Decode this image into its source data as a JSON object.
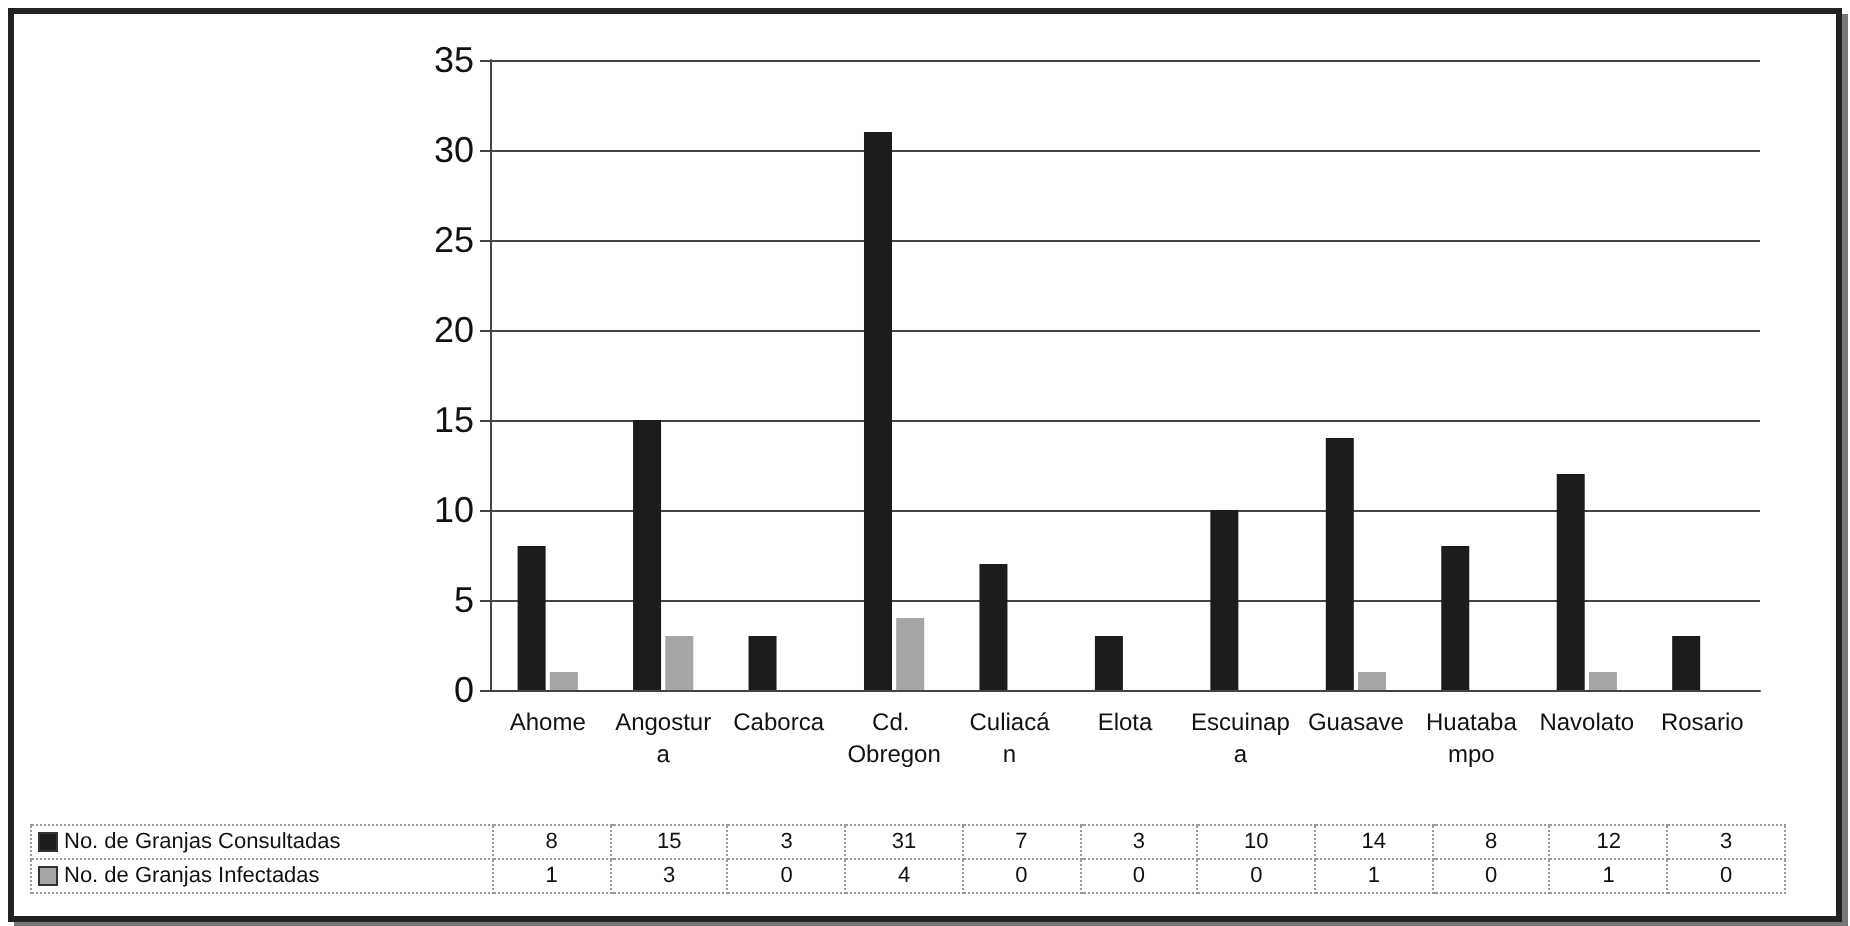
{
  "chart_data": {
    "type": "bar",
    "categories": [
      "Ahome",
      "Angostura",
      "Caborca",
      "Cd. Obregon",
      "Culiacán",
      "Elota",
      "Escuinapa",
      "Guasave",
      "Huatabampo",
      "Navolato",
      "Rosario"
    ],
    "series": [
      {
        "name": "No. de Granjas Consultadas",
        "color": "#1c1c1c",
        "values": [
          8,
          15,
          3,
          31,
          7,
          3,
          10,
          14,
          8,
          12,
          3
        ]
      },
      {
        "name": "No. de Granjas Infectadas",
        "color": "#a6a6a6",
        "values": [
          1,
          3,
          0,
          4,
          0,
          0,
          0,
          1,
          0,
          1,
          0
        ]
      }
    ],
    "ylim": [
      0,
      35
    ],
    "yticks": [
      0,
      5,
      10,
      15,
      20,
      25,
      30,
      35
    ],
    "grid": "y",
    "legend": "bottom",
    "data_labels": true
  }
}
